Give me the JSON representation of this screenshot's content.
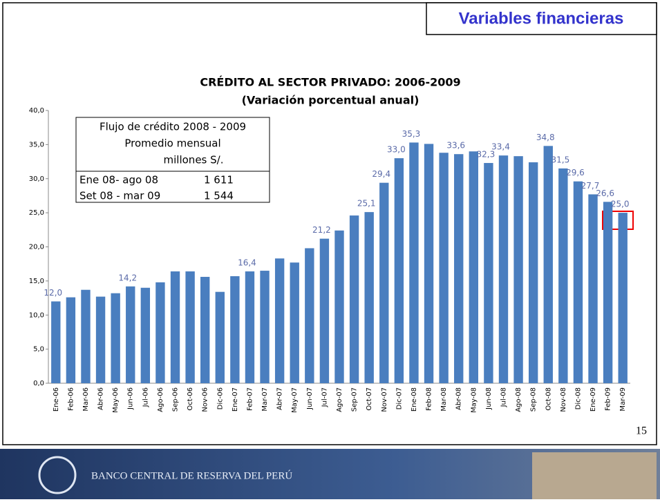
{
  "slide": {
    "heading": "Variables financieras",
    "page_number": "15",
    "footer": "BANCO CENTRAL DE RESERVA DEL PERÚ"
  },
  "chart_data": {
    "type": "bar",
    "title": "CRÉDITO AL SECTOR PRIVADO: 2006-2009",
    "subtitle": "(Variación porcentual anual)",
    "color": "#4a7ebf",
    "categories": [
      "Ene-06",
      "Feb-06",
      "Mar-06",
      "Abr-06",
      "May-06",
      "Jun-06",
      "Jul-06",
      "Ago-06",
      "Sep-06",
      "Oct-06",
      "Nov-06",
      "Dic-06",
      "Ene-07",
      "Feb-07",
      "Mar-07",
      "Abr-07",
      "May-07",
      "Jun-07",
      "Jul-07",
      "Ago-07",
      "Sep-07",
      "Oct-07",
      "Nov-07",
      "Dic-07",
      "Ene-08",
      "Feb-08",
      "Mar-08",
      "Abr-08",
      "May-08",
      "Jun-08",
      "Jul-08",
      "Ago-08",
      "Sep-08",
      "Oct-08",
      "Nov-08",
      "Dic-08",
      "Ene-09",
      "Feb-09",
      "Mar-09"
    ],
    "values": [
      12.0,
      12.6,
      13.7,
      12.7,
      13.2,
      14.2,
      14.0,
      14.8,
      16.4,
      16.4,
      15.6,
      13.4,
      15.7,
      16.4,
      16.5,
      18.3,
      17.7,
      19.8,
      21.2,
      22.4,
      24.6,
      25.1,
      29.4,
      33.0,
      35.3,
      35.1,
      33.8,
      33.6,
      34.0,
      32.3,
      33.4,
      33.3,
      32.4,
      34.8,
      31.5,
      29.6,
      27.7,
      26.6,
      25.0
    ],
    "value_labels": [
      "12,0",
      null,
      null,
      null,
      null,
      "14,2",
      null,
      null,
      null,
      null,
      null,
      null,
      null,
      "16,4",
      null,
      null,
      null,
      null,
      "21,2",
      null,
      null,
      "25,1",
      "29,4",
      "33,0",
      "35,3",
      null,
      null,
      "33,6",
      null,
      "32,3",
      "33,4",
      null,
      null,
      "34,8",
      "31,5",
      "29,6",
      "27,7",
      "26,6",
      "25,0"
    ],
    "ylim": [
      0,
      40
    ],
    "yticks": [
      {
        "value": 0,
        "label": "0,0"
      },
      {
        "value": 5,
        "label": "5,0"
      },
      {
        "value": 10,
        "label": "10,0"
      },
      {
        "value": 15,
        "label": "15,0"
      },
      {
        "value": 20,
        "label": "20,0"
      },
      {
        "value": 25,
        "label": "25,0"
      },
      {
        "value": 30,
        "label": "30,0"
      },
      {
        "value": 35,
        "label": "35,0"
      },
      {
        "value": 40,
        "label": "40,0"
      }
    ],
    "grid": false,
    "inset": {
      "lines": [
        "Flujo de crédito 2008 - 2009",
        "Promedio mensual",
        "millones S/."
      ],
      "rows": [
        [
          "Ene 08- ago 08",
          "1 611"
        ],
        [
          "Set 08 - mar 09",
          "1 544"
        ]
      ]
    }
  }
}
